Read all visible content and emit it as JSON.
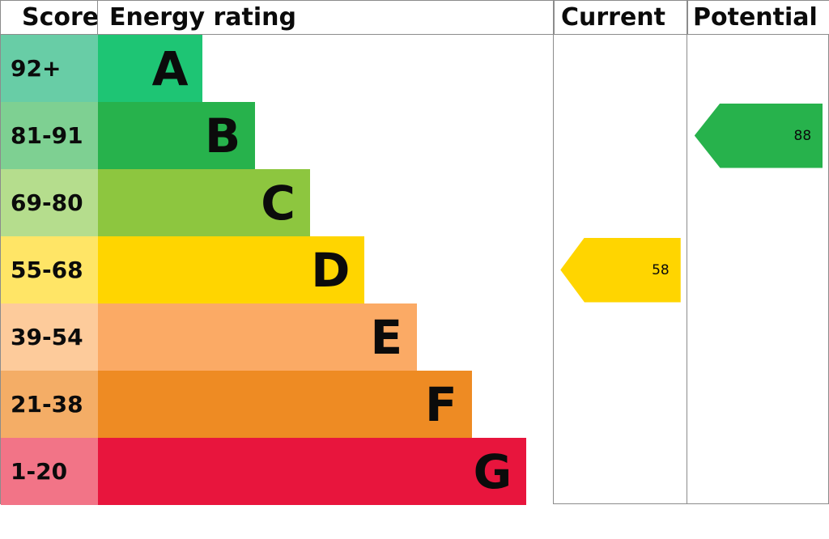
{
  "header": {
    "score": "Score",
    "rating": "Energy rating",
    "current": "Current",
    "potential": "Potential"
  },
  "bands": [
    {
      "range": "92+",
      "letter": "A",
      "color": "#1ec574",
      "tint": "#68cda6",
      "width": "23%"
    },
    {
      "range": "81-91",
      "letter": "B",
      "color": "#27b24c",
      "tint": "#7ed092",
      "width": "34.5%"
    },
    {
      "range": "69-80",
      "letter": "C",
      "color": "#8dc63f",
      "tint": "#b5dd8d",
      "width": "46.5%"
    },
    {
      "range": "55-68",
      "letter": "D",
      "color": "#ffd500",
      "tint": "#ffe566",
      "width": "58.5%"
    },
    {
      "range": "39-54",
      "letter": "E",
      "color": "#fbaa65",
      "tint": "#fdcb9b",
      "width": "70%"
    },
    {
      "range": "21-38",
      "letter": "F",
      "color": "#ee8b23",
      "tint": "#f4ad66",
      "width": "82%"
    },
    {
      "range": "1-20",
      "letter": "G",
      "color": "#e8153d",
      "tint": "#f27487",
      "width": "94%"
    }
  ],
  "current": {
    "value": "58",
    "band": "D",
    "band_index": 3,
    "color": "#ffd500"
  },
  "potential": {
    "value": "88",
    "band": "B",
    "band_index": 1,
    "color": "#27b24c"
  },
  "chart_data": {
    "type": "bar",
    "title": "Energy rating (EPC band chart)",
    "categories": [
      "A",
      "B",
      "C",
      "D",
      "E",
      "F",
      "G"
    ],
    "score_ranges": [
      "92+",
      "81-91",
      "69-80",
      "55-68",
      "39-54",
      "21-38",
      "1-20"
    ],
    "colors": [
      "#1ec574",
      "#27b24c",
      "#8dc63f",
      "#ffd500",
      "#fbaa65",
      "#ee8b23",
      "#e8153d"
    ],
    "bar_widths_pct": [
      23,
      34.5,
      46.5,
      58.5,
      70,
      82,
      94
    ],
    "columns": [
      "Score",
      "Energy rating",
      "Current",
      "Potential"
    ],
    "markers": [
      {
        "label": "Current",
        "value": 58,
        "band": "D",
        "color": "#ffd500"
      },
      {
        "label": "Potential",
        "value": 88,
        "band": "B",
        "color": "#27b24c"
      }
    ],
    "legend_position": "none",
    "grid": false
  }
}
